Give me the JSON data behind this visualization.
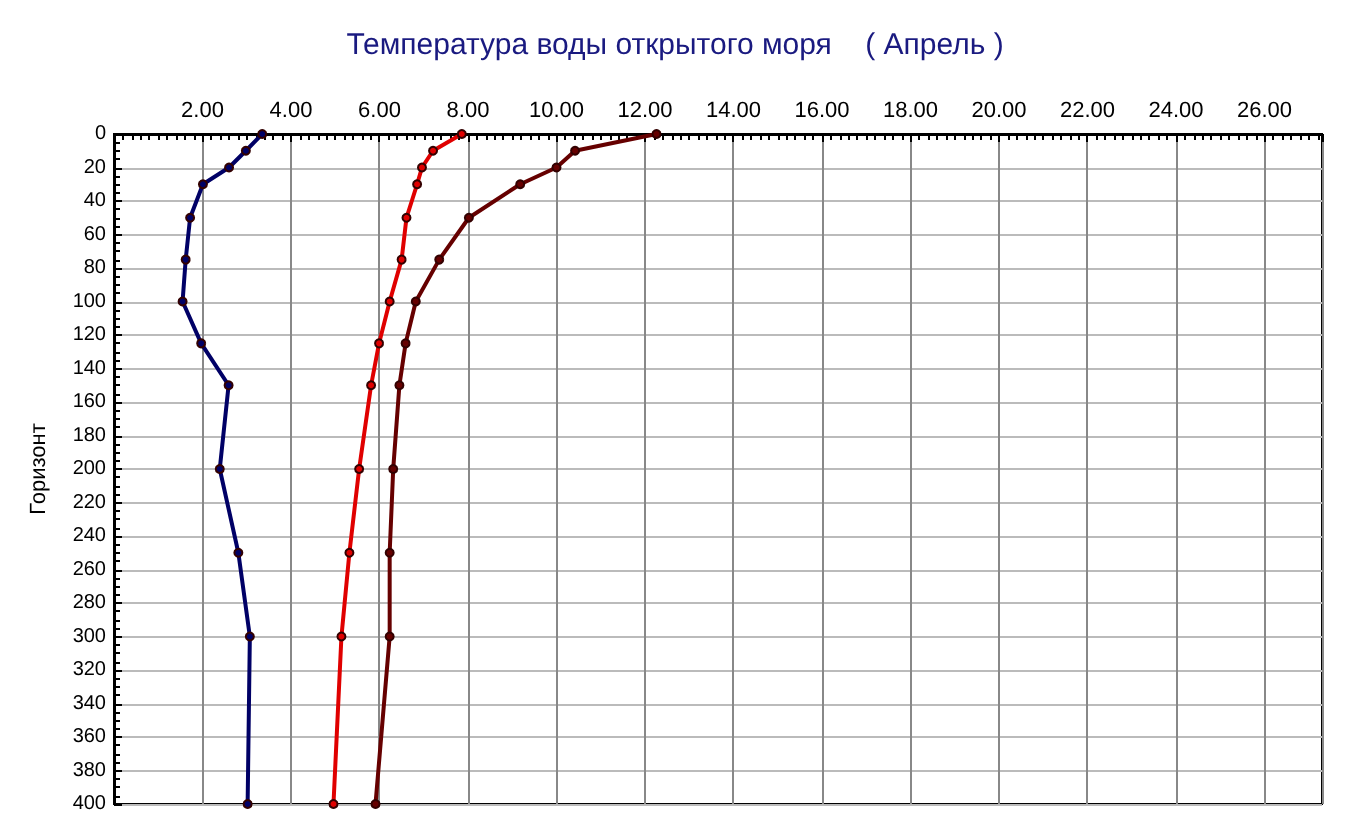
{
  "chart_data": {
    "type": "line",
    "title": "Температура воды открытого моря    ( Апрель )",
    "ylabel": "Горизонт",
    "xlim": [
      0,
      27.3
    ],
    "ylim": [
      400,
      0
    ],
    "xticks": [
      {
        "value": 2,
        "label": "2.00"
      },
      {
        "value": 4,
        "label": "4.00"
      },
      {
        "value": 6,
        "label": "6.00"
      },
      {
        "value": 8,
        "label": "8.00"
      },
      {
        "value": 10,
        "label": "10.00"
      },
      {
        "value": 12,
        "label": "12.00"
      },
      {
        "value": 14,
        "label": "14.00"
      },
      {
        "value": 16,
        "label": "16.00"
      },
      {
        "value": 18,
        "label": "18.00"
      },
      {
        "value": 20,
        "label": "20.00"
      },
      {
        "value": 22,
        "label": "22.00"
      },
      {
        "value": 24,
        "label": "24.00"
      },
      {
        "value": 26,
        "label": "26.00"
      }
    ],
    "yticks": [
      0,
      20,
      40,
      60,
      80,
      100,
      120,
      140,
      160,
      180,
      200,
      220,
      240,
      260,
      280,
      300,
      320,
      340,
      360,
      380,
      400
    ],
    "series": [
      {
        "color": "#000066",
        "x": [
          3.35,
          2.98,
          2.6,
          2.01,
          1.72,
          1.62,
          1.55,
          1.97,
          2.59,
          2.39,
          2.81,
          3.07,
          3.02
        ],
        "values": [
          0,
          10,
          20,
          30,
          50,
          75,
          100,
          125,
          150,
          200,
          250,
          300,
          400
        ]
      },
      {
        "color": "#e00000",
        "x": [
          7.86,
          7.21,
          6.96,
          6.85,
          6.61,
          6.5,
          6.23,
          5.99,
          5.81,
          5.54,
          5.32,
          5.14,
          4.96
        ],
        "values": [
          0,
          10,
          20,
          30,
          50,
          75,
          100,
          125,
          150,
          200,
          250,
          300,
          400
        ]
      },
      {
        "color": "#660000",
        "x": [
          12.26,
          10.42,
          10.0,
          9.18,
          8.02,
          7.35,
          6.82,
          6.59,
          6.45,
          6.31,
          6.23,
          6.23,
          5.91
        ],
        "values": [
          0,
          10,
          20,
          30,
          50,
          75,
          100,
          125,
          150,
          200,
          250,
          300,
          400
        ]
      }
    ],
    "grid": true,
    "marker": "circle",
    "line_style": "solid"
  }
}
